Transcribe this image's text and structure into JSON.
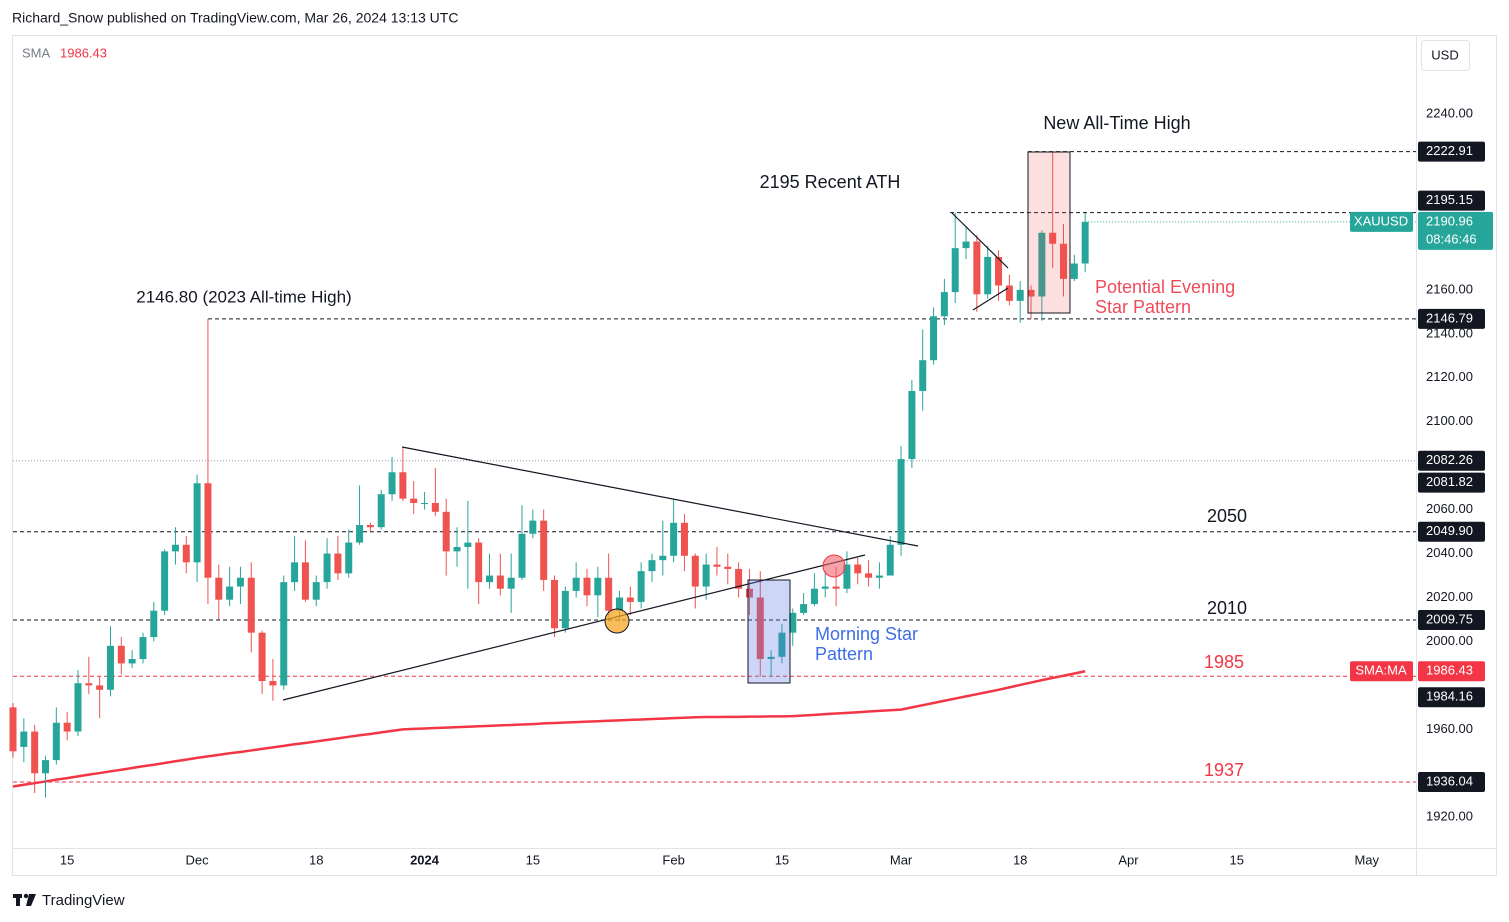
{
  "header": {
    "publisher": "Richard_Snow published on TradingView.com, Mar 26, 2024 13:13 UTC",
    "currency": "USD",
    "brand": "TradingView"
  },
  "chart_data": {
    "type": "candlestick",
    "symbol": "XAUUSD",
    "countdown": "08:46:46",
    "up_color": "#26a69a",
    "down_color": "#ef5350",
    "categories": [
      null,
      null,
      null,
      null,
      null,
      "15",
      null,
      null,
      null,
      null,
      null,
      null,
      null,
      null,
      null,
      null,
      null,
      "Dec",
      null,
      null,
      null,
      null,
      null,
      null,
      null,
      null,
      null,
      null,
      "18",
      null,
      null,
      null,
      null,
      null,
      null,
      null,
      null,
      null,
      "2024",
      null,
      null,
      null,
      null,
      null,
      null,
      null,
      null,
      null,
      "15",
      null,
      null,
      null,
      null,
      null,
      null,
      null,
      null,
      null,
      null,
      null,
      null,
      "Feb",
      null,
      null,
      null,
      null,
      null,
      null,
      null,
      null,
      null,
      "15",
      null,
      null,
      null,
      null,
      null,
      null,
      null,
      null,
      null,
      null,
      "Mar",
      null,
      null,
      null,
      null,
      null,
      null,
      null,
      null,
      null,
      null,
      "18",
      null,
      null,
      null,
      null,
      null,
      null,
      null,
      null,
      null,
      "Apr",
      null,
      null,
      null,
      null,
      null,
      null,
      null,
      null,
      null,
      "15",
      null,
      null,
      null,
      null,
      null,
      null,
      null,
      null,
      null,
      null,
      null,
      "May"
    ],
    "open": [
      1970,
      1952,
      1959,
      1940,
      1946,
      1963,
      1959,
      1981,
      1980,
      1978,
      1998,
      1990,
      1992,
      2002,
      2014,
      2041,
      2044,
      2036,
      2072,
      2029,
      2019,
      2025,
      2029,
      2004,
      1982,
      1980,
      2027,
      2036,
      2019,
      2027,
      2040,
      2031,
      2045,
      2053,
      2052,
      2067,
      2077,
      2065,
      2063,
      2063,
      2059,
      2041,
      2043,
      2045,
      2027,
      2030,
      2024,
      2029,
      2049,
      2055,
      2028,
      2006,
      2023,
      2029,
      2021,
      2029,
      2014,
      2020,
      2018,
      2032,
      2037,
      2039,
      2054,
      2039,
      2025,
      2035,
      2034,
      2033,
      2024,
      2020,
      1992,
      1993,
      2004,
      2013,
      2017,
      2024,
      2025,
      2024,
      2035,
      2031,
      2029,
      2030,
      2044,
      2083,
      2114,
      2128,
      2148,
      2159,
      2179,
      2182,
      2158,
      2175,
      2162,
      2155,
      2160,
      2157,
      2186,
      2181,
      2165,
      2172,
      null,
      null,
      null,
      null,
      null,
      null,
      null,
      null,
      null,
      null,
      null,
      null,
      null,
      null,
      null,
      null,
      null,
      null,
      null,
      null,
      null,
      null,
      null,
      null,
      null,
      null
    ],
    "high": [
      1972,
      1965,
      1962,
      1948,
      1970,
      1968,
      1987,
      1993,
      1984,
      2007,
      2002,
      1996,
      2004,
      2018,
      2042,
      2052,
      2048,
      2076,
      2146.8,
      2035,
      2034,
      2034,
      2036,
      2005,
      1992,
      2030,
      2048,
      2046,
      2030,
      2047,
      2048,
      2051,
      2071,
      2054,
      2069,
      2084,
      2088,
      2073,
      2068,
      2079,
      2065,
      2052,
      2064,
      2047,
      2040,
      2040,
      2040,
      2062,
      2060,
      2060,
      2030,
      2025,
      2036,
      2033,
      2034,
      2040,
      2023,
      2025,
      2036,
      2040,
      2055,
      2065,
      2058,
      2040,
      2040,
      2043,
      2040,
      2036,
      2033,
      2032,
      1996,
      2008,
      2015,
      2022,
      2031,
      2032,
      2034,
      2041,
      2038,
      2037,
      2036,
      2048,
      2089,
      2119,
      2142,
      2152,
      2165,
      2195.15,
      2189,
      2185,
      2180,
      2178,
      2167,
      2164,
      2162,
      2187,
      2222.91,
      2190,
      2176,
      2195,
      null,
      null,
      null,
      null,
      null,
      null,
      null,
      null,
      null,
      null,
      null,
      null,
      null,
      null,
      null,
      null,
      null,
      null,
      null,
      null,
      null,
      null,
      null,
      null,
      null,
      null
    ],
    "low": [
      1947,
      1945,
      1931,
      1929,
      1944,
      1955,
      1957,
      1976,
      1965,
      1975,
      1985,
      1988,
      1990,
      2000,
      2012,
      2035,
      2031,
      2027,
      2017,
      2010,
      2016,
      2017,
      1995,
      1976,
      1973,
      1978,
      2023,
      2018,
      2016,
      2024,
      2028,
      2029,
      2044,
      2050,
      2051,
      2064,
      2064,
      2058,
      2060,
      2057,
      2030,
      2034,
      2024,
      2017,
      2024,
      2021,
      2013,
      2028,
      2047,
      2023,
      2002,
      2004,
      2020,
      2016,
      2011,
      2011,
      2009,
      2012,
      2015,
      2027,
      2030,
      2036,
      2032,
      2015,
      2019,
      2030,
      2026,
      2020,
      2012,
      1984,
      1984,
      1990,
      1998,
      2012,
      2016,
      2020,
      2016,
      2022,
      2026,
      2025,
      2024,
      2030,
      2039,
      2079,
      2105,
      2126,
      2144,
      2154,
      2174,
      2150,
      2156,
      2155,
      2153,
      2145,
      2146.8,
      2146,
      2170,
      2157,
      2164,
      2168,
      null,
      null,
      null,
      null,
      null,
      null,
      null,
      null,
      null,
      null,
      null,
      null,
      null,
      null,
      null,
      null,
      null,
      null,
      null,
      null,
      null,
      null,
      null,
      null,
      null,
      null
    ],
    "close": [
      1950,
      1959,
      1940,
      1946,
      1963,
      1959,
      1981,
      1980,
      1978,
      1998,
      1990,
      1992,
      2002,
      2014,
      2041,
      2044,
      2036,
      2072,
      2029,
      2019,
      2025,
      2029,
      2004,
      1982,
      1980,
      2027,
      2036,
      2019,
      2027,
      2040,
      2031,
      2045,
      2053,
      2052,
      2067,
      2077,
      2065,
      2063,
      2063,
      2059,
      2041,
      2043,
      2045,
      2027,
      2030,
      2024,
      2029,
      2049,
      2055,
      2028,
      2006,
      2023,
      2029,
      2021,
      2029,
      2014,
      2020,
      2018,
      2032,
      2037,
      2039,
      2054,
      2039,
      2025,
      2035,
      2034,
      2033,
      2024,
      2020,
      1992,
      1993,
      2004,
      2013,
      2017,
      2024,
      2025,
      2024,
      2035,
      2031,
      2029,
      2030,
      2044,
      2083,
      2114,
      2128,
      2148,
      2159,
      2179,
      2182,
      2158,
      2175,
      2162,
      2155,
      2160,
      2157,
      2186,
      2181,
      2165,
      2172,
      2190.96,
      null,
      null,
      null,
      null,
      null,
      null,
      null,
      null,
      null,
      null,
      null,
      null,
      null,
      null,
      null,
      null,
      null,
      null,
      null,
      null,
      null,
      null,
      null,
      null,
      null,
      null
    ],
    "sma": {
      "name": "SMA",
      "tag": "SMA:MA",
      "value": 1986.43,
      "color": "#f23645",
      "values": [
        1934.0,
        1934.8,
        1935.5,
        1936.3,
        1937.1,
        1937.8,
        1938.6,
        1939.4,
        1940.1,
        1940.9,
        1941.6,
        1942.4,
        1943.2,
        1943.9,
        1944.7,
        1945.5,
        1946.2,
        1947.0,
        1947.7,
        1948.4,
        1949.1,
        1949.7,
        1950.4,
        1951.1,
        1951.8,
        1952.5,
        1953.2,
        1953.8,
        1954.5,
        1955.2,
        1955.9,
        1956.6,
        1957.3,
        1957.9,
        1958.6,
        1959.3,
        1960.0,
        1960.2,
        1960.4,
        1960.6,
        1960.8,
        1961.0,
        1961.2,
        1961.4,
        1961.6,
        1961.8,
        1962.0,
        1962.2,
        1962.4,
        1962.7,
        1962.9,
        1963.1,
        1963.3,
        1963.5,
        1963.7,
        1963.9,
        1964.1,
        1964.3,
        1964.5,
        1964.7,
        1964.9,
        1965.1,
        1965.3,
        1965.5,
        1965.6,
        1965.6,
        1965.7,
        1965.7,
        1965.8,
        1965.8,
        1965.9,
        1965.9,
        1966.0,
        1966.3,
        1966.6,
        1966.9,
        1967.2,
        1967.5,
        1967.8,
        1968.1,
        1968.4,
        1968.7,
        1969.0,
        1970.0,
        1971.0,
        1972.0,
        1973.0,
        1974.0,
        1975.0,
        1976.0,
        1977.0,
        1978.0,
        1979.1,
        1980.2,
        1981.3,
        1982.4,
        1983.4,
        1984.4,
        1985.4,
        1986.43,
        null,
        null,
        null,
        null,
        null,
        null,
        null,
        null,
        null,
        null,
        null,
        null,
        null,
        null,
        null,
        null,
        null,
        null,
        null,
        null,
        null,
        null,
        null,
        null,
        null,
        null
      ]
    },
    "ylim": [
      1906,
      2276
    ],
    "yticks": [
      {
        "value": 2240,
        "label": "2240.00"
      },
      {
        "value": 2160,
        "label": "2160.00"
      },
      {
        "value": 2140,
        "label": "2140.00"
      },
      {
        "value": 2120,
        "label": "2120.00"
      },
      {
        "value": 2100,
        "label": "2100.00"
      },
      {
        "value": 2060,
        "label": "2060.00"
      },
      {
        "value": 2040,
        "label": "2040.00"
      },
      {
        "value": 2020,
        "label": "2020.00"
      },
      {
        "value": 2000,
        "label": "2000.00"
      },
      {
        "value": 1960,
        "label": "1960.00"
      },
      {
        "value": 1920,
        "label": "1920.00"
      }
    ],
    "grid": false,
    "price_tags": [
      2222.91,
      2195.15,
      2146.79,
      2082.26,
      2081.82,
      {
        "value": 2049.9,
        "label": "2049.90"
      },
      2009.75,
      1984.16,
      1936.04
    ],
    "annotations": {
      "new_ath": "New All-Time High",
      "recent_ath": "2195 Recent ATH",
      "ath_2023": "2146.80 (2023 All-time High)",
      "l2050": "2050",
      "l2010": "2010",
      "l1985": "1985",
      "l1937": "1937",
      "morning_star": [
        "Morning Star",
        "Pattern"
      ],
      "evening_star": [
        "Potential Evening",
        "Star Pattern"
      ]
    }
  }
}
